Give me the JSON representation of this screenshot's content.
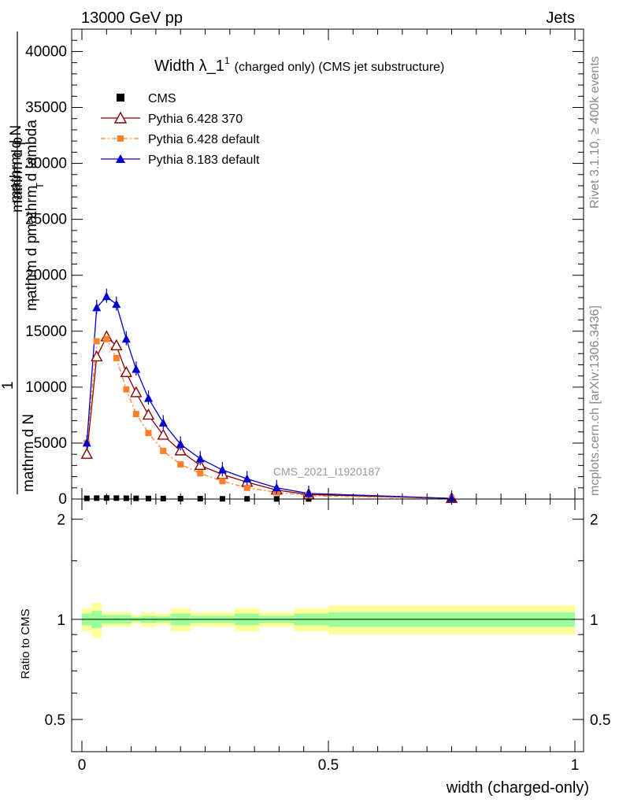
{
  "header": {
    "left": "13000 GeV pp",
    "right": "Jets"
  },
  "side_labels": {
    "rivet": "Rivet 3.1.10, ≥ 400k events",
    "mcplots": "mcplots.cern.ch [arXiv:1306.3436]"
  },
  "colors": {
    "cms": "#000000",
    "p6_370": "#8b0000",
    "p6_default": "#ff7f2a",
    "p8": "#0000cc",
    "band_outer": "#ffff99",
    "band_inner": "#99ff99"
  },
  "chart_data": [
    {
      "type": "line",
      "title_main": "Width λ_1",
      "title_sup": "1",
      "title_sub": "(charged only) (CMS jet substructure)",
      "watermark": "CMS_2021_I1920187",
      "ylabel_lines": [
        "mathrm d N",
        "mathrm d p",
        "mathrm d lambda",
        "1",
        "mathrm d N",
        "mathrm d p",
        "T",
        "T"
      ],
      "xlim": [
        0,
        1
      ],
      "ylim": [
        0,
        42000
      ],
      "yticks": [
        0,
        5000,
        10000,
        15000,
        20000,
        25000,
        30000,
        35000,
        40000
      ],
      "ytick_labels": [
        "0",
        "5000",
        "10000",
        "15000",
        "20000",
        "25000",
        "30000",
        "35000",
        "40000"
      ],
      "legend": [
        "CMS",
        "Pythia 6.428 370",
        "Pythia 6.428 default",
        "Pythia 8.183 default"
      ],
      "series": [
        {
          "name": "CMS",
          "x": [
            0.01,
            0.03,
            0.05,
            0.07,
            0.09,
            0.11,
            0.135,
            0.165,
            0.2,
            0.24,
            0.285,
            0.335,
            0.395,
            0.46,
            0.75
          ],
          "values": [
            60,
            80,
            90,
            80,
            70,
            60,
            50,
            45,
            35,
            28,
            20,
            15,
            10,
            5,
            2
          ]
        },
        {
          "name": "Pythia 6.428 370",
          "x": [
            0.01,
            0.03,
            0.05,
            0.07,
            0.09,
            0.11,
            0.135,
            0.165,
            0.2,
            0.24,
            0.285,
            0.335,
            0.395,
            0.46,
            0.75
          ],
          "values": [
            4000,
            12700,
            14500,
            13700,
            11300,
            9500,
            7500,
            5700,
            4300,
            3000,
            2200,
            1500,
            800,
            400,
            50
          ]
        },
        {
          "name": "Pythia 6.428 default",
          "x": [
            0.01,
            0.03,
            0.05,
            0.07,
            0.09,
            0.11,
            0.135,
            0.165,
            0.2,
            0.24,
            0.285,
            0.335,
            0.395,
            0.46,
            0.75
          ],
          "values": [
            5000,
            14100,
            14300,
            12600,
            9800,
            7600,
            5900,
            4300,
            3100,
            2300,
            1600,
            1000,
            600,
            300,
            40
          ]
        },
        {
          "name": "Pythia 8.183 default",
          "x": [
            0.01,
            0.03,
            0.05,
            0.07,
            0.09,
            0.11,
            0.135,
            0.165,
            0.2,
            0.24,
            0.285,
            0.335,
            0.395,
            0.46,
            0.75
          ],
          "values": [
            5000,
            17100,
            18100,
            17400,
            14300,
            11600,
            9000,
            6800,
            4900,
            3600,
            2600,
            1800,
            1000,
            500,
            60
          ]
        }
      ]
    },
    {
      "type": "area",
      "ylabel": "Ratio to CMS",
      "xlabel": "width (charged-only)",
      "xlim": [
        0,
        1
      ],
      "ylim": [
        0.4,
        2.3
      ],
      "yscale": "log",
      "yticks": [
        0.5,
        1,
        2
      ],
      "ytick_labels": [
        "0.5",
        "1",
        "2"
      ],
      "xticks": [
        0,
        0.5,
        1
      ],
      "xtick_labels": [
        "0",
        "0.5",
        "1"
      ],
      "bins": [
        {
          "lo": 0.0,
          "hi": 0.02,
          "outer": 0.08,
          "inner": 0.04
        },
        {
          "lo": 0.02,
          "hi": 0.04,
          "outer": 0.12,
          "inner": 0.06
        },
        {
          "lo": 0.04,
          "hi": 0.06,
          "outer": 0.05,
          "inner": 0.03
        },
        {
          "lo": 0.06,
          "hi": 0.08,
          "outer": 0.05,
          "inner": 0.03
        },
        {
          "lo": 0.08,
          "hi": 0.1,
          "outer": 0.05,
          "inner": 0.03
        },
        {
          "lo": 0.1,
          "hi": 0.12,
          "outer": 0.03,
          "inner": 0.015
        },
        {
          "lo": 0.12,
          "hi": 0.15,
          "outer": 0.05,
          "inner": 0.025
        },
        {
          "lo": 0.15,
          "hi": 0.18,
          "outer": 0.04,
          "inner": 0.02
        },
        {
          "lo": 0.18,
          "hi": 0.22,
          "outer": 0.08,
          "inner": 0.04
        },
        {
          "lo": 0.22,
          "hi": 0.26,
          "outer": 0.05,
          "inner": 0.025
        },
        {
          "lo": 0.26,
          "hi": 0.31,
          "outer": 0.05,
          "inner": 0.025
        },
        {
          "lo": 0.31,
          "hi": 0.36,
          "outer": 0.08,
          "inner": 0.04
        },
        {
          "lo": 0.36,
          "hi": 0.43,
          "outer": 0.05,
          "inner": 0.025
        },
        {
          "lo": 0.43,
          "hi": 0.5,
          "outer": 0.08,
          "inner": 0.04
        },
        {
          "lo": 0.5,
          "hi": 1.0,
          "outer": 0.1,
          "inner": 0.05
        }
      ]
    }
  ]
}
